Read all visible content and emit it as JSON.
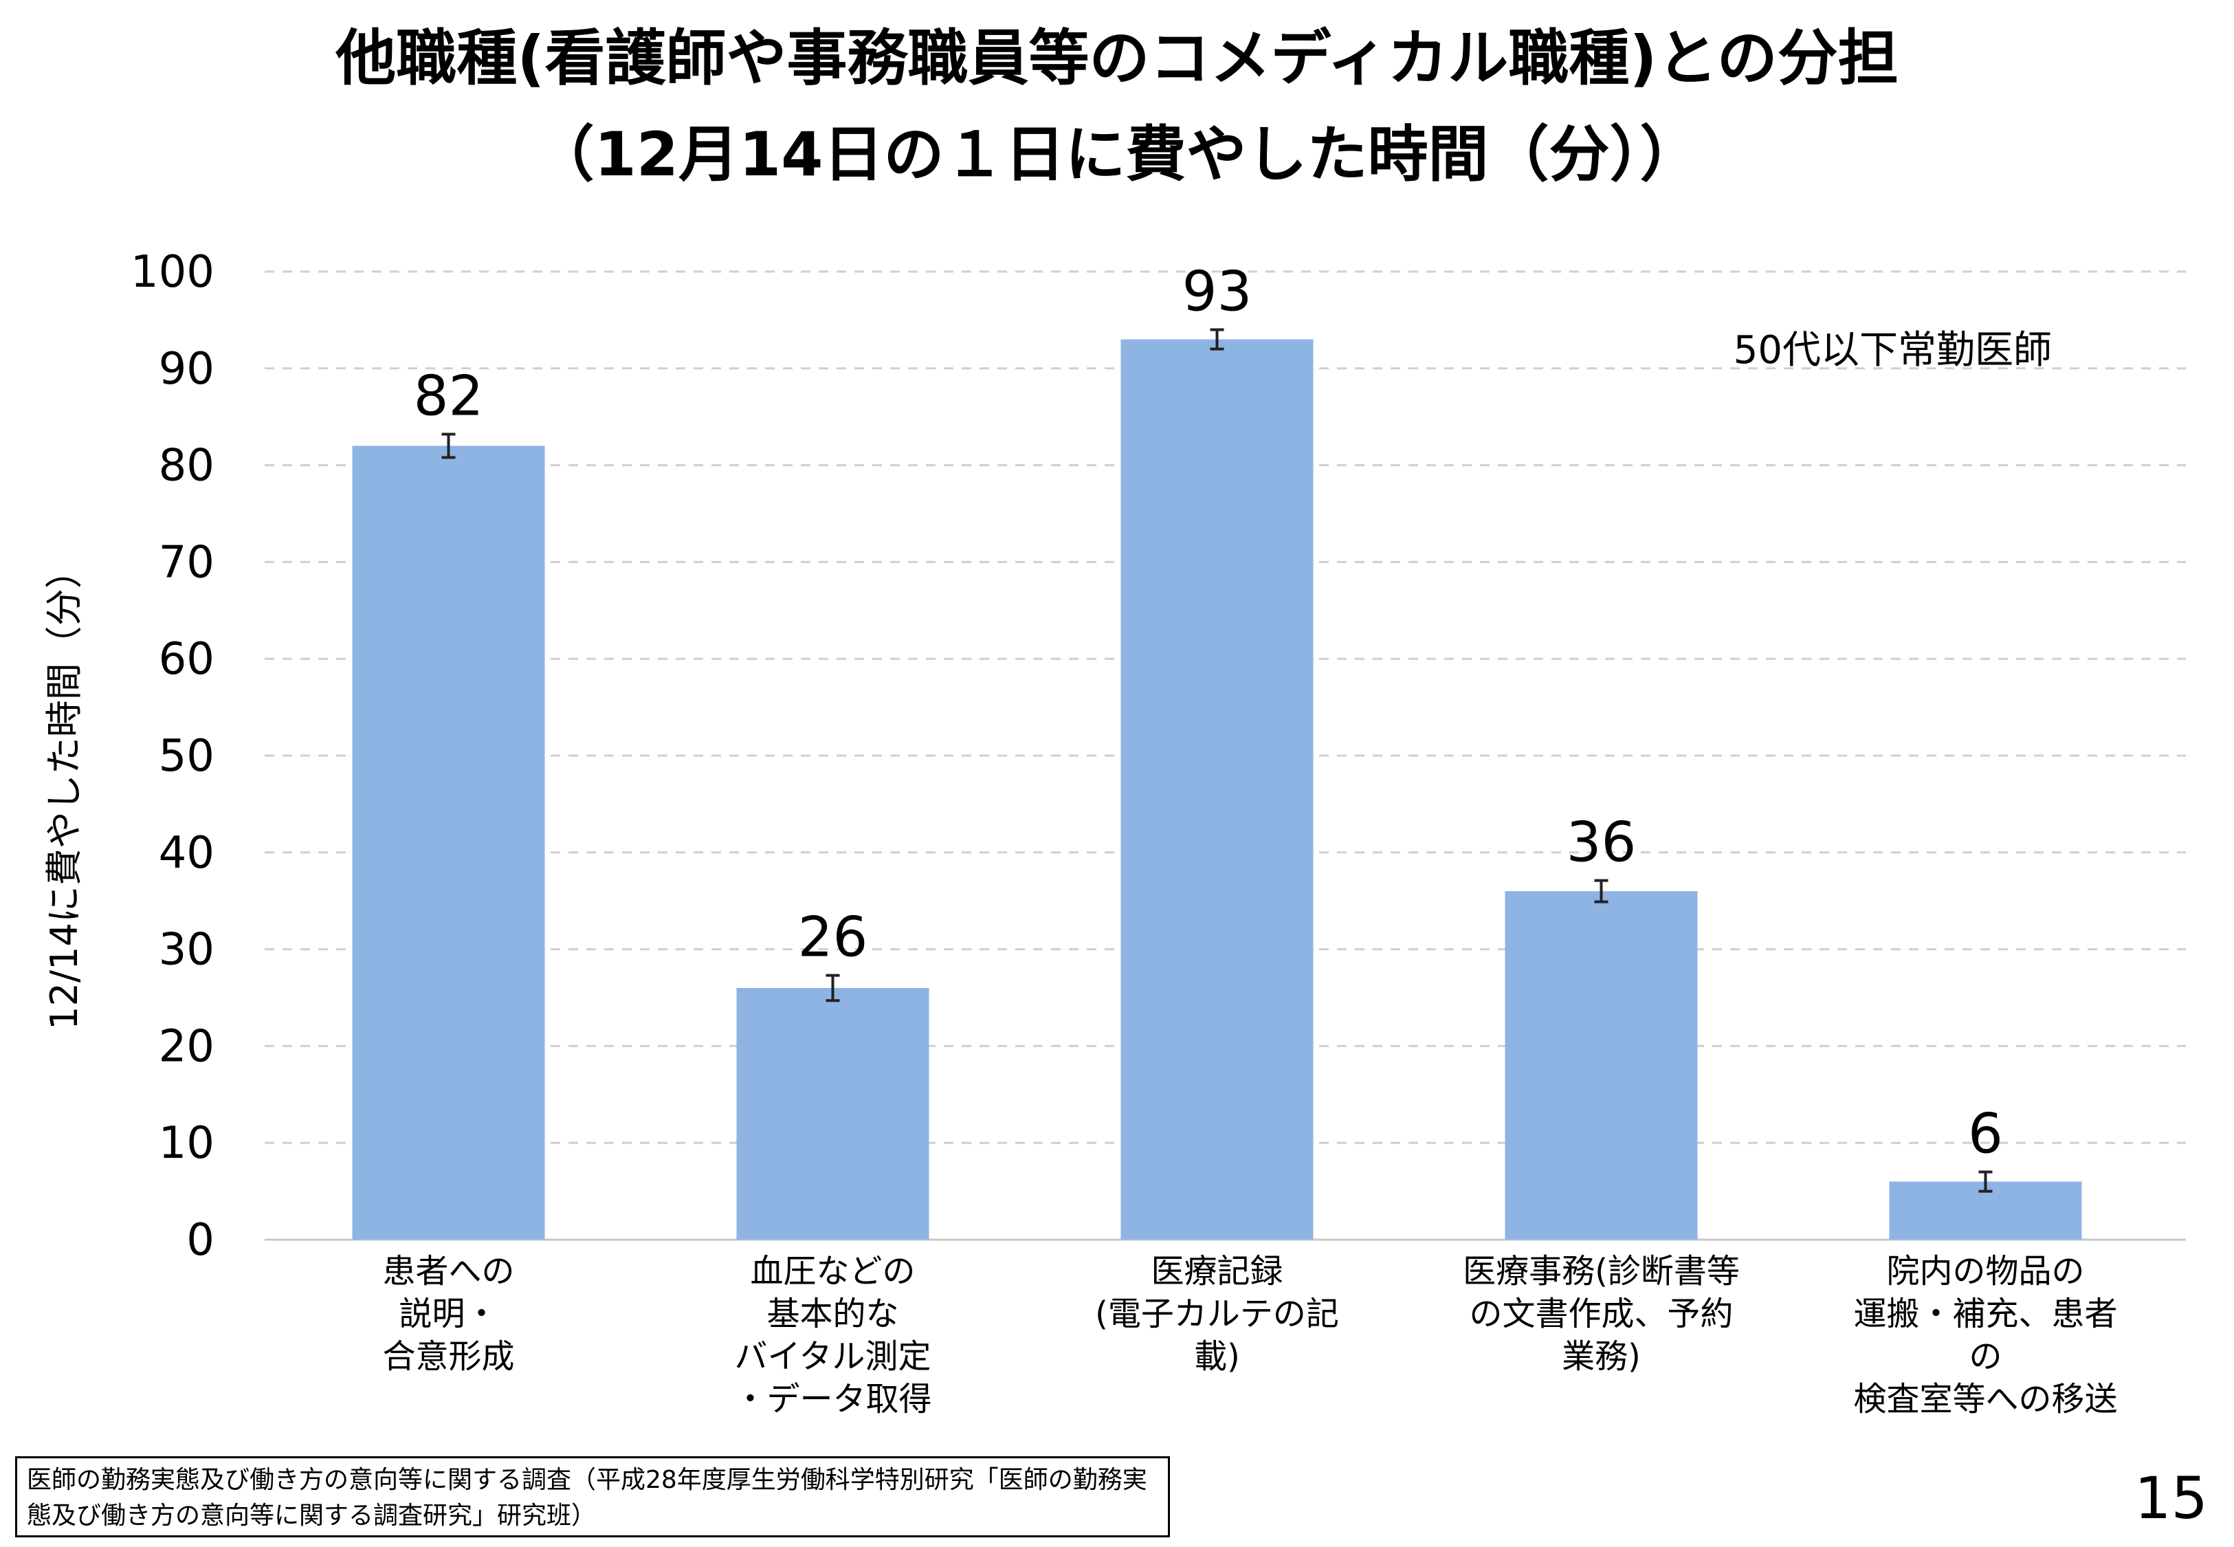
{
  "header": {
    "title_line1": "他職種(看護師や事務職員等のコメディカル職種)との分担",
    "title_line2": "（12月14日の１日に費やした時間（分））"
  },
  "chart_data": {
    "type": "bar",
    "categories": [
      "患者への\n説明・\n合意形成",
      "血圧などの\n基本的な\nバイタル測定\n・データ取得",
      "医療記録\n(電子カルテの記載)",
      "医療事務(診断書等\nの文書作成、予約\n業務)",
      "院内の物品の\n運搬・補充、患者の\n検査室等への移送"
    ],
    "values": [
      82,
      26,
      93,
      36,
      6
    ],
    "data_labels": [
      "82",
      "26",
      "93",
      "36",
      "6"
    ],
    "error_bars": [
      1.2,
      1.3,
      1.0,
      1.1,
      1.0
    ],
    "ylabel": "12/14に費やした時間（分）",
    "ylim": [
      0,
      100
    ],
    "yticks": [
      0,
      10,
      20,
      30,
      40,
      50,
      60,
      70,
      80,
      90,
      100
    ],
    "annotation": "50代以下常勤医師",
    "grid": true,
    "bar_color": "#8EB4E3"
  },
  "footer": {
    "source": "医師の勤務実態及び働き方の意向等に関する調査（平成28年度厚生労働科学特別研究「医師の勤務実態及び働き方の意向等に関する調査研究」研究班）",
    "page_number": "15"
  }
}
